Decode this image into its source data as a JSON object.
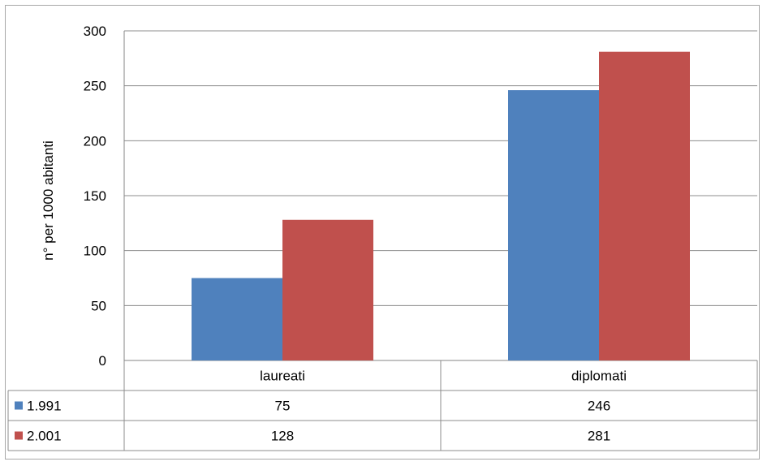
{
  "chart_data": {
    "type": "bar",
    "categories": [
      "laureati",
      "diplomati"
    ],
    "series": [
      {
        "name": "1.991",
        "values": [
          75,
          246
        ],
        "color": "#4f81bd"
      },
      {
        "name": "2.001",
        "values": [
          128,
          281
        ],
        "color": "#c0504d"
      }
    ],
    "ylabel": "n° per 1000 abitanti",
    "ylim": [
      0,
      300
    ],
    "yticks": [
      0,
      50,
      100,
      150,
      200,
      250,
      300
    ],
    "grid": true,
    "legend": "data-table"
  }
}
